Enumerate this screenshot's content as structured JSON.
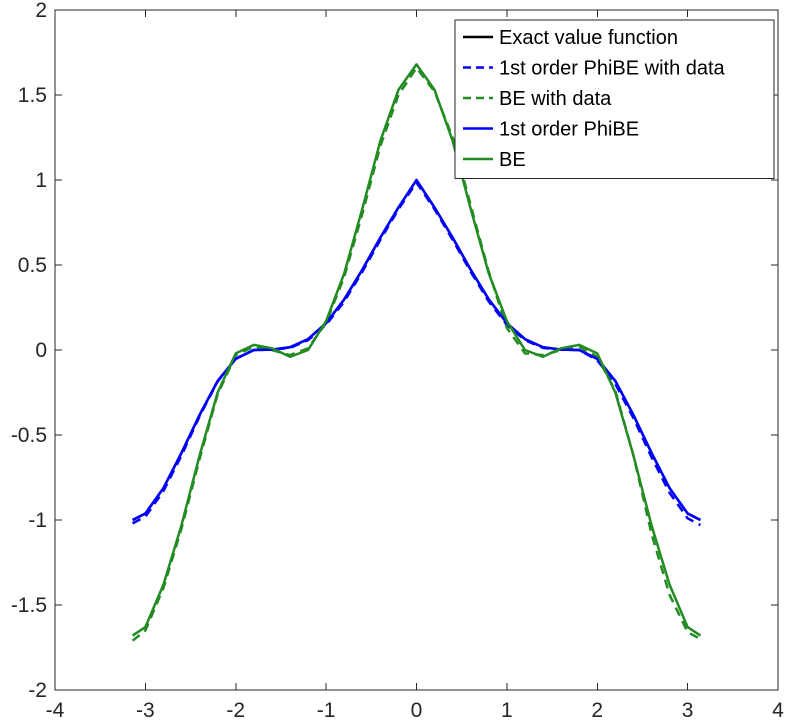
{
  "chart_data": {
    "type": "line",
    "title": "",
    "xlabel": "",
    "ylabel": "",
    "xlim": [
      -4,
      4
    ],
    "ylim": [
      -2,
      2
    ],
    "xticks": [
      -4,
      -3,
      -2,
      -1,
      0,
      1,
      2,
      3,
      4
    ],
    "yticks": [
      -2,
      -1.5,
      -1,
      -0.5,
      0,
      0.5,
      1,
      1.5,
      2
    ],
    "xtick_labels": [
      "-4",
      "-3",
      "-2",
      "-1",
      "0",
      "1",
      "2",
      "3",
      "4"
    ],
    "ytick_labels": [
      "-2",
      "-1.5",
      "-1",
      "-0.5",
      "0",
      "0.5",
      "1",
      "1.5",
      "2"
    ],
    "grid": false,
    "legend_position": "top-right",
    "series": [
      {
        "name": "Exact value function",
        "color": "#000000",
        "style": "solid",
        "x": [
          -3.1416,
          -3.0,
          -2.8,
          -2.6,
          -2.4,
          -2.2,
          -2.0,
          -1.8,
          -1.6,
          -1.4,
          -1.2,
          -1.0,
          -0.8,
          -0.6,
          -0.4,
          -0.2,
          0.0,
          0.2,
          0.4,
          0.6,
          0.8,
          1.0,
          1.2,
          1.4,
          1.6,
          1.8,
          2.0,
          2.2,
          2.4,
          2.6,
          2.8,
          3.0,
          3.1416
        ],
        "y": [
          -1.0,
          -0.962,
          -0.812,
          -0.605,
          -0.382,
          -0.182,
          -0.052,
          0.0,
          0.002,
          0.016,
          0.064,
          0.158,
          0.298,
          0.472,
          0.661,
          0.838,
          1.0,
          0.838,
          0.661,
          0.472,
          0.298,
          0.158,
          0.064,
          0.016,
          0.002,
          0.0,
          -0.052,
          -0.182,
          -0.382,
          -0.605,
          -0.812,
          -0.962,
          -1.0
        ]
      },
      {
        "name": "1st order PhiBE with data",
        "color": "#0000ff",
        "style": "dashed",
        "x": [
          -3.1416,
          -3.0,
          -2.8,
          -2.6,
          -2.4,
          -2.2,
          -2.0,
          -1.8,
          -1.6,
          -1.4,
          -1.2,
          -1.0,
          -0.8,
          -0.6,
          -0.4,
          -0.2,
          0.0,
          0.2,
          0.4,
          0.6,
          0.8,
          1.0,
          1.2,
          1.4,
          1.6,
          1.8,
          2.0,
          2.2,
          2.4,
          2.6,
          2.8,
          3.0,
          3.1416
        ],
        "y": [
          -1.02,
          -0.98,
          -0.83,
          -0.62,
          -0.39,
          -0.185,
          -0.05,
          0.0,
          0.002,
          0.012,
          0.058,
          0.148,
          0.285,
          0.46,
          0.648,
          0.828,
          0.985,
          0.828,
          0.648,
          0.46,
          0.285,
          0.148,
          0.058,
          0.012,
          0.002,
          0.0,
          -0.06,
          -0.2,
          -0.4,
          -0.63,
          -0.84,
          -0.99,
          -1.03
        ]
      },
      {
        "name": "BE with data",
        "color": "#228b22",
        "style": "dashed",
        "x": [
          -3.1416,
          -3.0,
          -2.8,
          -2.6,
          -2.4,
          -2.2,
          -2.0,
          -1.8,
          -1.6,
          -1.4,
          -1.2,
          -1.0,
          -0.8,
          -0.6,
          -0.4,
          -0.2,
          0.0,
          0.2,
          0.4,
          0.6,
          0.8,
          1.0,
          1.2,
          1.4,
          1.6,
          1.8,
          2.0,
          2.2,
          2.4,
          2.6,
          2.8,
          3.0,
          3.1416
        ],
        "y": [
          -1.71,
          -1.65,
          -1.4,
          -1.05,
          -0.64,
          -0.26,
          -0.03,
          0.02,
          0.0,
          -0.03,
          0.01,
          0.16,
          0.43,
          0.8,
          1.2,
          1.5,
          1.66,
          1.52,
          1.25,
          0.85,
          0.46,
          0.13,
          -0.02,
          -0.03,
          0.0,
          0.02,
          -0.04,
          -0.24,
          -0.62,
          -1.08,
          -1.44,
          -1.66,
          -1.7
        ]
      },
      {
        "name": "1st order PhiBE",
        "color": "#0000ff",
        "style": "solid",
        "x": [
          -3.1416,
          -3.0,
          -2.8,
          -2.6,
          -2.4,
          -2.2,
          -2.0,
          -1.8,
          -1.6,
          -1.4,
          -1.2,
          -1.0,
          -0.8,
          -0.6,
          -0.4,
          -0.2,
          0.0,
          0.2,
          0.4,
          0.6,
          0.8,
          1.0,
          1.2,
          1.4,
          1.6,
          1.8,
          2.0,
          2.2,
          2.4,
          2.6,
          2.8,
          3.0,
          3.1416
        ],
        "y": [
          -1.0,
          -0.962,
          -0.812,
          -0.605,
          -0.382,
          -0.182,
          -0.052,
          0.0,
          0.002,
          0.016,
          0.064,
          0.158,
          0.298,
          0.472,
          0.661,
          0.838,
          1.0,
          0.838,
          0.661,
          0.472,
          0.298,
          0.158,
          0.064,
          0.016,
          0.002,
          0.0,
          -0.052,
          -0.182,
          -0.382,
          -0.605,
          -0.812,
          -0.962,
          -1.0
        ]
      },
      {
        "name": "BE",
        "color": "#228b22",
        "style": "solid",
        "x": [
          -3.1416,
          -3.0,
          -2.8,
          -2.6,
          -2.4,
          -2.2,
          -2.0,
          -1.8,
          -1.6,
          -1.4,
          -1.2,
          -1.0,
          -0.8,
          -0.6,
          -0.4,
          -0.2,
          0.0,
          0.2,
          0.4,
          0.6,
          0.8,
          1.0,
          1.2,
          1.4,
          1.6,
          1.8,
          2.0,
          2.2,
          2.4,
          2.6,
          2.8,
          3.0,
          3.1416
        ],
        "y": [
          -1.68,
          -1.63,
          -1.38,
          -1.03,
          -0.62,
          -0.25,
          -0.02,
          0.03,
          0.01,
          -0.04,
          0.0,
          0.17,
          0.45,
          0.83,
          1.23,
          1.53,
          1.68,
          1.53,
          1.23,
          0.83,
          0.45,
          0.17,
          0.0,
          -0.04,
          0.01,
          0.03,
          -0.02,
          -0.25,
          -0.62,
          -1.03,
          -1.38,
          -1.63,
          -1.68
        ]
      }
    ]
  }
}
